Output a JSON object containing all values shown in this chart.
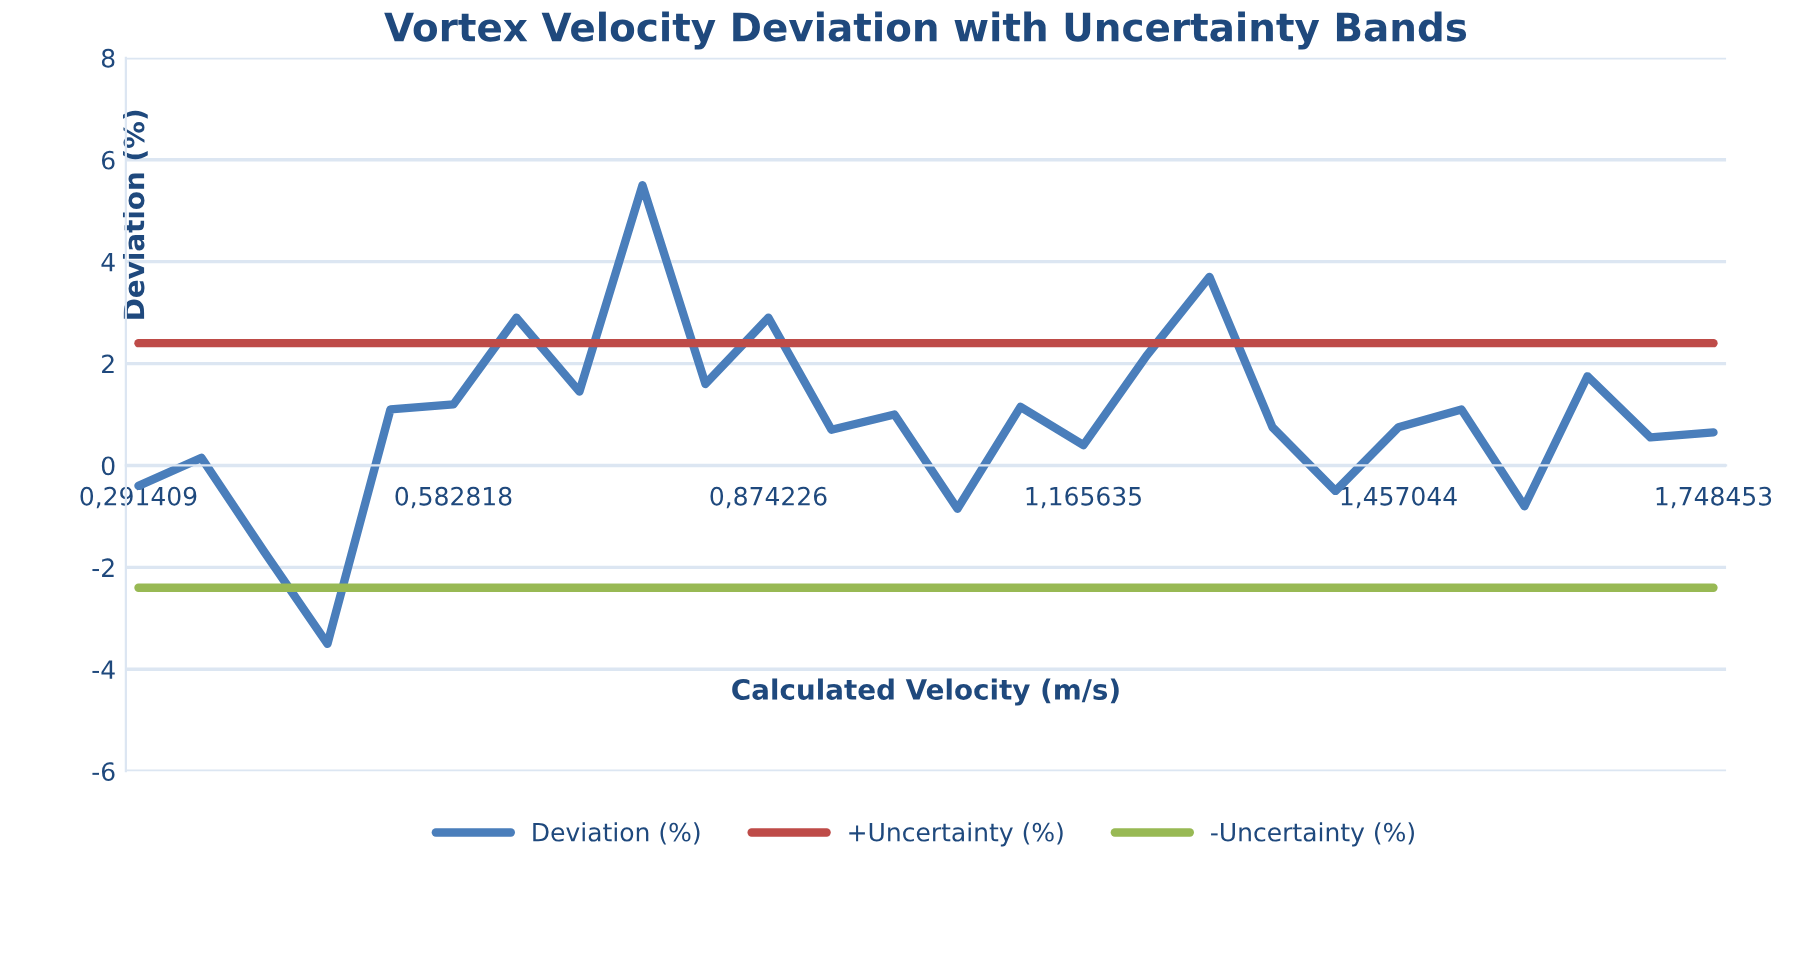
{
  "chart_data": {
    "type": "line",
    "title": "Vortex Velocity Deviation with Uncertainty Bands",
    "xlabel": "Calculated Velocity (m/s)",
    "ylabel": "Deviation (%)",
    "categories": [
      "0,291409",
      null,
      null,
      null,
      null,
      "0,582818",
      null,
      null,
      null,
      null,
      "0,874226",
      null,
      null,
      null,
      null,
      "1,165635",
      null,
      null,
      null,
      null,
      "1,457044",
      null,
      null,
      null,
      null,
      "1,748453"
    ],
    "series": [
      {
        "name": "Deviation (%)",
        "color": "#4a7ebb",
        "values": [
          -0.4,
          0.15,
          -1.7,
          -3.5,
          1.1,
          1.2,
          2.9,
          1.45,
          5.5,
          1.6,
          2.9,
          0.7,
          1.0,
          -0.85,
          1.15,
          0.4,
          2.15,
          3.7,
          0.75,
          -0.5,
          0.75,
          1.1,
          -0.8,
          1.75,
          0.55,
          0.65
        ]
      },
      {
        "name": "+Uncertainty (%)",
        "color": "#be4b48",
        "values": [
          2.4,
          2.4,
          2.4,
          2.4,
          2.4,
          2.4,
          2.4,
          2.4,
          2.4,
          2.4,
          2.4,
          2.4,
          2.4,
          2.4,
          2.4,
          2.4,
          2.4,
          2.4,
          2.4,
          2.4,
          2.4,
          2.4,
          2.4,
          2.4,
          2.4,
          2.4
        ]
      },
      {
        "name": "-Uncertainty (%)",
        "color": "#98b954",
        "values": [
          -2.4,
          -2.4,
          -2.4,
          -2.4,
          -2.4,
          -2.4,
          -2.4,
          -2.4,
          -2.4,
          -2.4,
          -2.4,
          -2.4,
          -2.4,
          -2.4,
          -2.4,
          -2.4,
          -2.4,
          -2.4,
          -2.4,
          -2.4,
          -2.4,
          -2.4,
          -2.4,
          -2.4,
          -2.4,
          -2.4
        ]
      }
    ],
    "ylim": [
      -6,
      8
    ],
    "yticks": [
      -6,
      -4,
      -2,
      0,
      2,
      4,
      6,
      8
    ],
    "grid": "y",
    "legend": "bottom",
    "marker": "none",
    "line_style": "solid"
  }
}
